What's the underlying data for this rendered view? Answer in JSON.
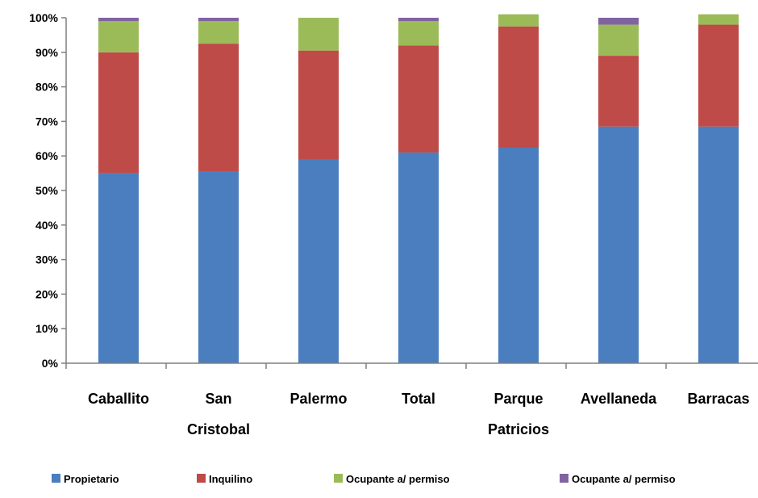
{
  "chart_data": {
    "type": "bar",
    "stacked": true,
    "title": "",
    "xlabel": "",
    "ylabel": "",
    "ylim": [
      0,
      100
    ],
    "yticks": [
      "0%",
      "10%",
      "20%",
      "30%",
      "40%",
      "50%",
      "60%",
      "70%",
      "80%",
      "90%",
      "100%"
    ],
    "grid": false,
    "legend_position": "bottom",
    "categories": [
      [
        "Caballito"
      ],
      [
        "San",
        "Cristobal"
      ],
      [
        "Palermo"
      ],
      [
        "Total"
      ],
      [
        "Parque",
        "Patricios"
      ],
      [
        "Avellaneda"
      ],
      [
        "Barracas"
      ]
    ],
    "series": [
      {
        "name": "Propietario",
        "color": "#4a7ebf",
        "values": [
          55,
          55.5,
          59,
          61,
          62.5,
          68.5,
          68.5
        ]
      },
      {
        "name": "Inquilino",
        "color": "#be4b48",
        "values": [
          35,
          37,
          31.5,
          31,
          35,
          20.5,
          29.5
        ]
      },
      {
        "name": "Ocupante a/ permiso",
        "color": "#9bbb59",
        "values": [
          9,
          6.5,
          9.5,
          7,
          3.5,
          9,
          3
        ]
      },
      {
        "name": "Ocupante a/ permiso",
        "color": "#8064a2",
        "values": [
          1,
          1,
          0,
          1,
          0,
          2,
          0
        ]
      }
    ]
  }
}
